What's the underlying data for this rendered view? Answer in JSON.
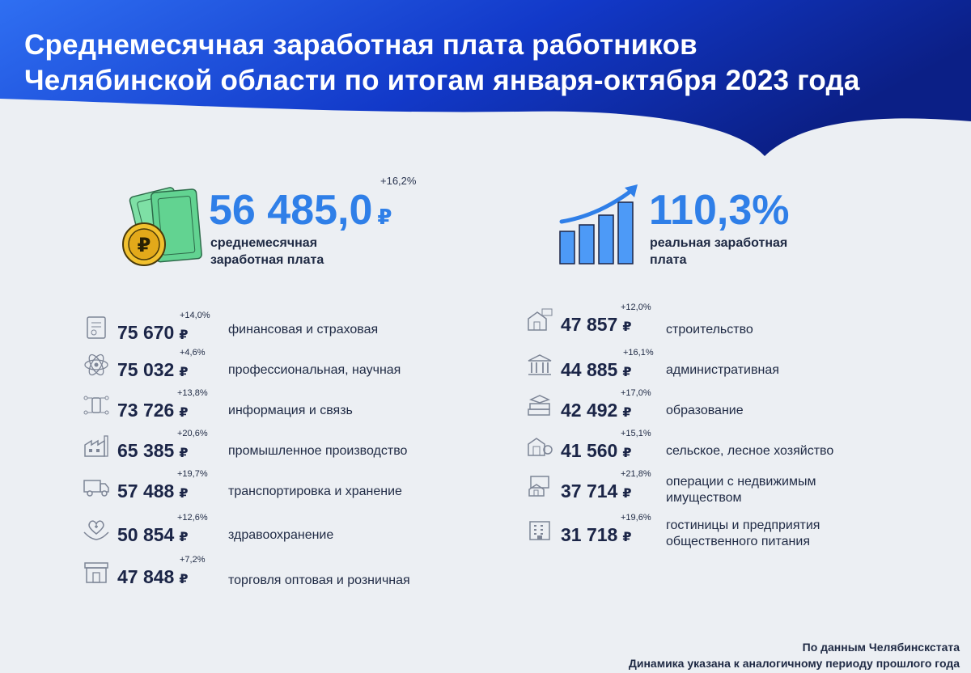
{
  "title": {
    "line1": "Среднемесячная заработная плата работников",
    "line2": "Челябинской области по итогам января-октября 2023 года"
  },
  "colors": {
    "banner": "#0f2f9e",
    "accent": "#2f7fe8",
    "text": "#1b2547",
    "background": "#eceff3"
  },
  "average_salary": {
    "growth": "+16,2%",
    "value": "56 485,0",
    "currency": "₽",
    "label_line1": "среднемесячная",
    "label_line2": "заработная плата",
    "icon": "money-coin-icon"
  },
  "real_salary": {
    "value": "110,3%",
    "label_line1": "реальная заработная",
    "label_line2": "плата",
    "icon": "growth-chart-icon"
  },
  "left_sectors": [
    {
      "growth": "+14,0%",
      "value": "75 670",
      "currency": "₽",
      "label": "финансовая и страховая",
      "icon": "document-icon"
    },
    {
      "growth": "+4,6%",
      "value": "75 032",
      "currency": "₽",
      "label": "профессиональная, научная",
      "icon": "atom-icon"
    },
    {
      "growth": "+13,8%",
      "value": "73 726",
      "currency": "₽",
      "label": "информация и связь",
      "icon": "phone-network-icon"
    },
    {
      "growth": "+20,6%",
      "value": "65 385",
      "currency": "₽",
      "label": "промышленное производство",
      "icon": "factory-icon"
    },
    {
      "growth": "+19,7%",
      "value": "57 488",
      "currency": "₽",
      "label": "транспортировка и хранение",
      "icon": "truck-icon"
    },
    {
      "growth": "+12,6%",
      "value": "50 854",
      "currency": "₽",
      "label": "здравоохранение",
      "icon": "health-hands-icon"
    },
    {
      "growth": "+7,2%",
      "value": "47 848",
      "currency": "₽",
      "label": "торговля оптовая и розничная",
      "icon": "store-icon"
    }
  ],
  "right_sectors": [
    {
      "growth": "+12,0%",
      "value": "47 857",
      "currency": "₽",
      "label_line1": "строительство",
      "label_line2": "",
      "icon": "construction-icon"
    },
    {
      "growth": "+16,1%",
      "value": "44 885",
      "currency": "₽",
      "label_line1": "административная",
      "label_line2": "",
      "icon": "government-building-icon"
    },
    {
      "growth": "+17,0%",
      "value": "42 492",
      "currency": "₽",
      "label_line1": "образование",
      "label_line2": "",
      "icon": "books-icon"
    },
    {
      "growth": "+15,1%",
      "value": "41 560",
      "currency": "₽",
      "label_line1": "сельское, лесное хозяйство",
      "label_line2": "",
      "icon": "farm-icon"
    },
    {
      "growth": "+21,8%",
      "value": "37 714",
      "currency": "₽",
      "label_line1": "операции с недвижимым",
      "label_line2": "имуществом",
      "icon": "real-estate-icon"
    },
    {
      "growth": "+19,6%",
      "value": "31 718",
      "currency": "₽",
      "label_line1": "гостиницы и предприятия",
      "label_line2": "общественного питания",
      "icon": "hotel-icon"
    }
  ],
  "footer": {
    "source": "По данным Челябинскстата",
    "note": "Динамика указана к аналогичному периоду прошлого года"
  }
}
